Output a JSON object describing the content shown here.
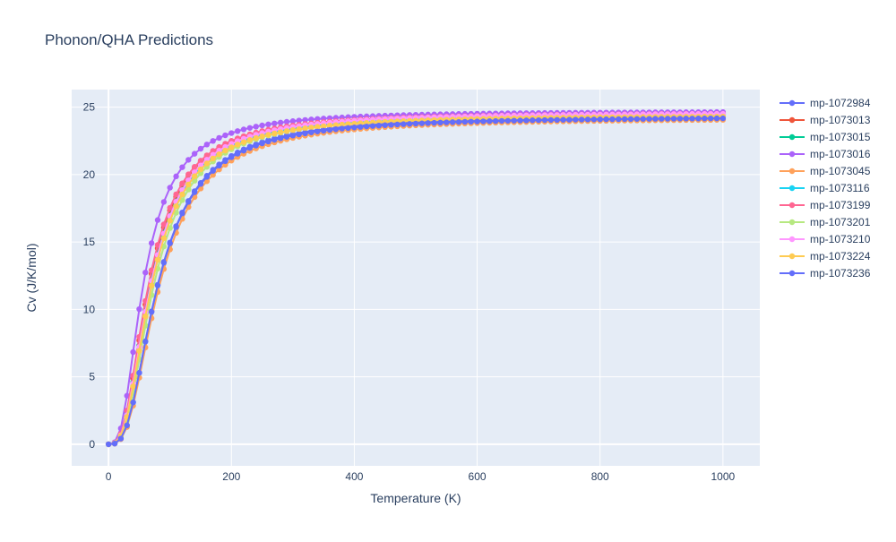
{
  "chart_data": {
    "type": "line",
    "title": "Phonon/QHA Predictions",
    "xlabel": "Temperature (K)",
    "ylabel": "Cv (J/K/mol)",
    "xlim": [
      -60,
      1060
    ],
    "ylim": [
      -1.6,
      26.3
    ],
    "xticks": [
      0,
      200,
      400,
      600,
      800,
      1000
    ],
    "xtick_labels": [
      "0",
      "200",
      "400",
      "600",
      "800",
      "1000"
    ],
    "yticks": [
      0,
      5,
      10,
      15,
      20,
      25
    ],
    "ytick_labels": [
      "0",
      "5",
      "10",
      "15",
      "20",
      "25"
    ],
    "grid": true,
    "legend_position": "right",
    "x": [
      0,
      10,
      20,
      30,
      40,
      50,
      60,
      70,
      80,
      90,
      100,
      110,
      120,
      130,
      140,
      150,
      160,
      170,
      180,
      190,
      200,
      210,
      220,
      230,
      240,
      250,
      260,
      270,
      280,
      290,
      300,
      310,
      320,
      330,
      340,
      350,
      360,
      370,
      380,
      390,
      400,
      410,
      420,
      430,
      440,
      450,
      460,
      470,
      480,
      490,
      500,
      510,
      520,
      530,
      540,
      550,
      560,
      570,
      580,
      590,
      600,
      610,
      620,
      630,
      640,
      650,
      660,
      670,
      680,
      690,
      700,
      710,
      720,
      730,
      740,
      750,
      760,
      770,
      780,
      790,
      800,
      810,
      820,
      830,
      840,
      850,
      860,
      870,
      880,
      890,
      900,
      910,
      920,
      930,
      940,
      950,
      960,
      970,
      980,
      990,
      1000
    ],
    "series": [
      {
        "name": "mp-1072984",
        "color": "#636efa",
        "theta": 330,
        "plateau": 24.4
      },
      {
        "name": "mp-1073013",
        "color": "#EF553B",
        "theta": 275,
        "plateau": 24.6
      },
      {
        "name": "mp-1073015",
        "color": "#00cc96",
        "theta": 282,
        "plateau": 24.5
      },
      {
        "name": "mp-1073016",
        "color": "#ab63fa",
        "theta": 235,
        "plateau": 24.7
      },
      {
        "name": "mp-1073045",
        "color": "#FFA15A",
        "theta": 340,
        "plateau": 24.2
      },
      {
        "name": "mp-1073116",
        "color": "#19d3f3",
        "theta": 290,
        "plateau": 24.5
      },
      {
        "name": "mp-1073199",
        "color": "#FF6692",
        "theta": 270,
        "plateau": 24.6
      },
      {
        "name": "mp-1073201",
        "color": "#B6E880",
        "theta": 305,
        "plateau": 24.5
      },
      {
        "name": "mp-1073210",
        "color": "#FF97FF",
        "theta": 285,
        "plateau": 24.6
      },
      {
        "name": "mp-1073224",
        "color": "#FECB52",
        "theta": 290,
        "plateau": 24.4
      },
      {
        "name": "mp-1073236",
        "color": "#636efa",
        "theta": 330,
        "plateau": 24.3
      }
    ]
  }
}
